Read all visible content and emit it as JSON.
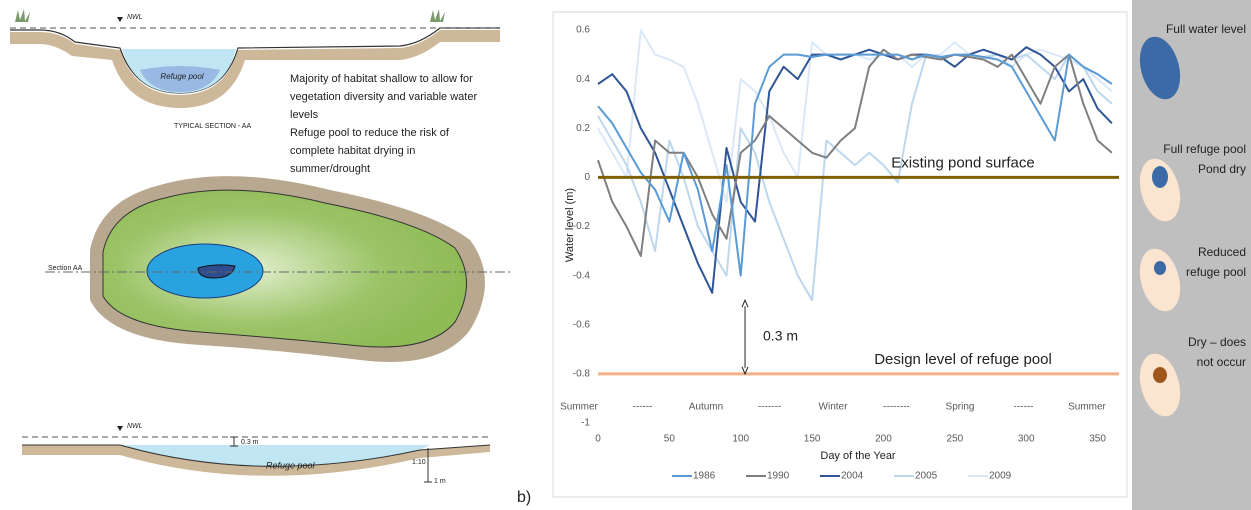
{
  "diagram": {
    "top_section": {
      "nwl": "NWL",
      "pool": "Refuge pool",
      "caption": "TYPICAL SECTION - AA",
      "notes": [
        "Majority of habitat shallow to allow for",
        "vegetation diversity and variable water",
        "levels",
        "Refuge pool to reduce the risk of",
        "complete habitat drying in",
        "summer/drought"
      ]
    },
    "plan": {
      "section": "Section AA"
    },
    "bottom_section": {
      "nwl": "NWL",
      "depth": "0.3 m",
      "pool": "Refuge pool",
      "slope": "1:10",
      "height": "1 m"
    },
    "panel_label": "b)"
  },
  "chart_data": {
    "type": "line",
    "x": [
      0,
      10,
      20,
      30,
      40,
      50,
      60,
      70,
      80,
      90,
      100,
      110,
      120,
      130,
      140,
      150,
      160,
      170,
      180,
      190,
      200,
      210,
      220,
      230,
      240,
      250,
      260,
      270,
      280,
      290,
      300,
      310,
      320,
      330,
      340,
      350,
      360
    ],
    "series": [
      {
        "name": "1986",
        "color": "#5b9bd5",
        "values": [
          0.29,
          0.22,
          0.12,
          0.02,
          -0.05,
          -0.18,
          0.1,
          -0.05,
          -0.3,
          0.05,
          -0.4,
          0.3,
          0.45,
          0.5,
          0.5,
          0.49,
          0.5,
          0.5,
          0.5,
          0.5,
          0.5,
          0.5,
          0.48,
          0.5,
          0.49,
          0.5,
          0.5,
          0.49,
          0.48,
          0.45,
          0.35,
          0.25,
          0.15,
          0.5,
          0.45,
          0.42,
          0.38
        ]
      },
      {
        "name": "1990",
        "color": "#7f7f7f",
        "values": [
          0.07,
          -0.1,
          -0.2,
          -0.32,
          0.15,
          0.1,
          0.1,
          0.0,
          -0.15,
          -0.25,
          0.1,
          0.15,
          0.25,
          0.2,
          0.15,
          0.1,
          0.08,
          0.15,
          0.2,
          0.45,
          0.52,
          0.48,
          0.5,
          0.49,
          0.48,
          0.5,
          0.49,
          0.48,
          0.45,
          0.5,
          0.4,
          0.3,
          0.45,
          0.5,
          0.3,
          0.15,
          0.1
        ]
      },
      {
        "name": "2004",
        "color": "#2f5597",
        "values": [
          0.38,
          0.42,
          0.35,
          0.2,
          0.1,
          -0.05,
          -0.2,
          -0.35,
          -0.47,
          0.12,
          -0.1,
          -0.18,
          0.35,
          0.45,
          0.4,
          0.5,
          0.5,
          0.48,
          0.5,
          0.52,
          0.5,
          0.48,
          0.5,
          0.5,
          0.49,
          0.45,
          0.5,
          0.52,
          0.5,
          0.48,
          0.53,
          0.5,
          0.45,
          0.35,
          0.4,
          0.28,
          0.22
        ]
      },
      {
        "name": "2005",
        "color": "#bdd7ee",
        "values": [
          0.25,
          0.15,
          0.05,
          -0.1,
          -0.3,
          0.15,
          0.0,
          -0.2,
          -0.3,
          -0.4,
          0.2,
          0.1,
          -0.1,
          -0.25,
          -0.4,
          -0.5,
          0.15,
          0.1,
          0.05,
          0.1,
          0.05,
          -0.02,
          0.3,
          0.5,
          0.48,
          0.5,
          0.5,
          0.49,
          0.5,
          0.48,
          0.5,
          0.45,
          0.4,
          0.5,
          0.45,
          0.35,
          0.3
        ]
      },
      {
        "name": "2009",
        "color": "#dae8f8",
        "values": [
          0.2,
          0.1,
          0.0,
          0.6,
          0.5,
          0.48,
          0.45,
          0.3,
          0.1,
          -0.1,
          0.4,
          0.35,
          0.25,
          0.1,
          0.0,
          0.55,
          0.5,
          0.5,
          0.5,
          0.48,
          0.5,
          0.5,
          0.45,
          0.5,
          0.5,
          0.55,
          0.5,
          0.48,
          0.5,
          0.45,
          0.5,
          0.52,
          0.5,
          0.48,
          0.45,
          0.4,
          0.35
        ]
      }
    ],
    "xlabel": "Day of the Year",
    "ylabel": "Water level (m)",
    "xlim": [
      0,
      365
    ],
    "xticks": [
      0,
      50,
      100,
      150,
      200,
      250,
      300,
      350
    ],
    "ylim": [
      -1,
      0.6
    ],
    "yticks": [
      -1,
      -0.8,
      -0.6,
      -0.4,
      -0.2,
      0,
      0.2,
      0.4,
      0.6
    ],
    "grid": false,
    "legend": "bottom",
    "season_labels": [
      "Summer",
      "------",
      "Autumn",
      "-------",
      "Winter",
      "--------",
      "Spring",
      "------",
      "Summer"
    ],
    "reference_lines": [
      {
        "value": 0,
        "label": "Existing pond surface",
        "color": "#7f6000"
      },
      {
        "value": -0.8,
        "label": "Design level of refuge pool",
        "color": "#f4b183"
      }
    ],
    "arrow": {
      "label": "0.3 m",
      "x": 103,
      "from": -0.5,
      "to": -0.8
    }
  },
  "side_panel": {
    "items": [
      {
        "lines": [
          "Full water level"
        ]
      },
      {
        "lines": [
          "Full refuge pool",
          "Pond dry"
        ]
      },
      {
        "lines": [
          "Reduced",
          "refuge pool"
        ]
      },
      {
        "lines": [
          "Dry – does",
          "not occur"
        ]
      }
    ]
  }
}
